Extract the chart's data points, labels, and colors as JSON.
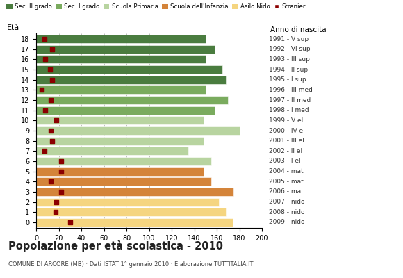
{
  "ages": [
    18,
    17,
    16,
    15,
    14,
    13,
    12,
    11,
    10,
    9,
    8,
    7,
    6,
    5,
    4,
    3,
    2,
    1,
    0
  ],
  "years": [
    "1991 - V sup",
    "1992 - VI sup",
    "1993 - III sup",
    "1994 - II sup",
    "1995 - I sup",
    "1996 - III med",
    "1997 - II med",
    "1998 - I med",
    "1999 - V el",
    "2000 - IV el",
    "2001 - III el",
    "2002 - II el",
    "2003 - I el",
    "2004 - mat",
    "2005 - mat",
    "2006 - mat",
    "2007 - nido",
    "2008 - nido",
    "2009 - nido"
  ],
  "bar_values": [
    150,
    158,
    150,
    165,
    168,
    150,
    170,
    158,
    148,
    180,
    148,
    135,
    155,
    148,
    155,
    175,
    162,
    168,
    174
  ],
  "stranieri": [
    7,
    14,
    8,
    12,
    14,
    5,
    13,
    8,
    18,
    13,
    14,
    7,
    22,
    22,
    13,
    22,
    18,
    17,
    30
  ],
  "bar_colors": [
    "#4a7c3f",
    "#4a7c3f",
    "#4a7c3f",
    "#4a7c3f",
    "#4a7c3f",
    "#7aab5e",
    "#7aab5e",
    "#7aab5e",
    "#b8d4a0",
    "#b8d4a0",
    "#b8d4a0",
    "#b8d4a0",
    "#b8d4a0",
    "#d4843a",
    "#d4843a",
    "#d4843a",
    "#f5d580",
    "#f5d580",
    "#f5d580"
  ],
  "legend_labels": [
    "Sec. II grado",
    "Sec. I grado",
    "Scuola Primaria",
    "Scuola dell'Infanzia",
    "Asilo Nido",
    "Stranieri"
  ],
  "legend_colors": [
    "#4a7c3f",
    "#7aab5e",
    "#b8d4a0",
    "#d4843a",
    "#f5d580",
    "#8b0000"
  ],
  "title": "Popolazione per età scolastica - 2010",
  "subtitle": "COMUNE DI ARCORE (MB) · Dati ISTAT 1° gennaio 2010 · Elaborazione TUTTITALIA.IT",
  "ylabel_eta": "Età",
  "xlabel_anno": "Anno di nascita",
  "xlim": [
    0,
    200
  ],
  "xticks": [
    0,
    20,
    40,
    60,
    80,
    100,
    120,
    140,
    160,
    180,
    200
  ],
  "bar_height": 0.82,
  "stranieri_color": "#8b0000",
  "stranieri_size": 22,
  "bg_color": "#ffffff"
}
